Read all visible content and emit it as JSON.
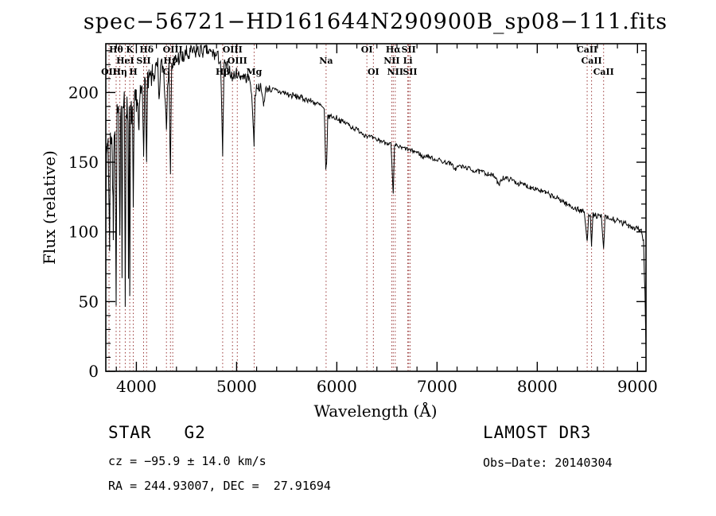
{
  "title": "spec−56721−HD161644N290900B_sp08−111.fits",
  "xlabel": "Wavelength (Å)",
  "ylabel": "Flux (relative)",
  "footer": {
    "class_label": "STAR   G2",
    "survey": "LAMOST DR3",
    "cz": "cz = −95.9 ± 14.0 km/s",
    "obs_date": "Obs−Date: 20140304",
    "radec": "RA = 244.93007, DEC =  27.91694"
  },
  "colors": {
    "spectrum": "#000000",
    "line_marker": "#9b3a3a",
    "axis": "#000000",
    "background": "#ffffff"
  },
  "chart_data": {
    "type": "line",
    "title": "spec−56721−HD161644N290900B_sp08−111.fits",
    "xlabel": "Wavelength (Å)",
    "ylabel": "Flux (relative)",
    "xlim": [
      3695,
      9085
    ],
    "ylim": [
      0,
      235
    ],
    "xticks": [
      4000,
      5000,
      6000,
      7000,
      8000,
      9000
    ],
    "yticks": [
      0,
      50,
      100,
      150,
      200
    ],
    "grid": false,
    "legend": "none",
    "spectral_lines": [
      {
        "label": "OII",
        "wavelength": 3727,
        "row": 3
      },
      {
        "label": "Hθ",
        "wavelength": 3798,
        "row": 1
      },
      {
        "label": "Hη",
        "wavelength": 3835,
        "row": 3
      },
      {
        "label": "HeI",
        "wavelength": 3889,
        "row": 2
      },
      {
        "label": "K",
        "wavelength": 3934,
        "row": 1
      },
      {
        "label": "H",
        "wavelength": 3969,
        "row": 3
      },
      {
        "label": "SII",
        "wavelength": 4072,
        "row": 2
      },
      {
        "label": "Hδ",
        "wavelength": 4102,
        "row": 1
      },
      {
        "label": "G",
        "wavelength": 4300,
        "row": 3
      },
      {
        "label": "Hγ",
        "wavelength": 4340,
        "row": 2
      },
      {
        "label": "OIII",
        "wavelength": 4363,
        "row": 1
      },
      {
        "label": "Hβ",
        "wavelength": 4861,
        "row": 3
      },
      {
        "label": "OIII",
        "wavelength": 4959,
        "row": 1
      },
      {
        "label": "OIII",
        "wavelength": 5007,
        "row": 2
      },
      {
        "label": "Mg",
        "wavelength": 5175,
        "row": 3
      },
      {
        "label": "Na",
        "wavelength": 5893,
        "row": 2
      },
      {
        "label": "OI",
        "wavelength": 6300,
        "row": 1
      },
      {
        "label": "OI",
        "wavelength": 6365,
        "row": 3
      },
      {
        "label": "NII",
        "wavelength": 6548,
        "row": 2
      },
      {
        "label": "Hα",
        "wavelength": 6563,
        "row": 1
      },
      {
        "label": "NII",
        "wavelength": 6583,
        "row": 3
      },
      {
        "label": "Li",
        "wavelength": 6708,
        "row": 2
      },
      {
        "label": "SII",
        "wavelength": 6717,
        "row": 1
      },
      {
        "label": "SII",
        "wavelength": 6731,
        "row": 3
      },
      {
        "label": "CaII",
        "wavelength": 8498,
        "row": 1
      },
      {
        "label": "CaII",
        "wavelength": 8542,
        "row": 2
      },
      {
        "label": "CaII",
        "wavelength": 8662,
        "row": 3
      }
    ],
    "noise_profile": [
      [
        3695,
        12
      ],
      [
        3900,
        11
      ],
      [
        4100,
        9
      ],
      [
        4400,
        6.5
      ],
      [
        4700,
        5.5
      ],
      [
        5000,
        4
      ],
      [
        5300,
        2.8
      ],
      [
        5700,
        2.2
      ],
      [
        6200,
        1.8
      ],
      [
        7000,
        1.6
      ],
      [
        7600,
        1.8
      ],
      [
        8200,
        2
      ],
      [
        8700,
        2.2
      ],
      [
        9085,
        2.5
      ]
    ],
    "series": [
      {
        "name": "spectrum",
        "points": [
          [
            3695,
            110
          ],
          [
            3702,
            150
          ],
          [
            3710,
            163
          ],
          [
            3718,
            168
          ],
          [
            3727,
            118
          ],
          [
            3733,
            92
          ],
          [
            3740,
            165
          ],
          [
            3748,
            170
          ],
          [
            3755,
            172
          ],
          [
            3762,
            138
          ],
          [
            3770,
            100
          ],
          [
            3778,
            176
          ],
          [
            3786,
            180
          ],
          [
            3798,
            46
          ],
          [
            3806,
            182
          ],
          [
            3814,
            184
          ],
          [
            3822,
            186
          ],
          [
            3828,
            148
          ],
          [
            3835,
            90
          ],
          [
            3843,
            190
          ],
          [
            3850,
            192
          ],
          [
            3857,
            76
          ],
          [
            3864,
            193
          ],
          [
            3872,
            190
          ],
          [
            3880,
            191
          ],
          [
            3889,
            50
          ],
          [
            3898,
            192
          ],
          [
            3906,
            188
          ],
          [
            3915,
            186
          ],
          [
            3921,
            70
          ],
          [
            3928,
            186
          ],
          [
            3934,
            45
          ],
          [
            3942,
            184
          ],
          [
            3950,
            185
          ],
          [
            3960,
            187
          ],
          [
            3969,
            108
          ],
          [
            3978,
            190
          ],
          [
            3990,
            193
          ],
          [
            4000,
            196
          ],
          [
            4012,
            194
          ],
          [
            4026,
            168
          ],
          [
            4038,
            199
          ],
          [
            4050,
            201
          ],
          [
            4060,
            200
          ],
          [
            4072,
            163
          ],
          [
            4082,
            203
          ],
          [
            4092,
            205
          ],
          [
            4102,
            148
          ],
          [
            4112,
            206
          ],
          [
            4126,
            208
          ],
          [
            4144,
            210
          ],
          [
            4160,
            212
          ],
          [
            4178,
            214
          ],
          [
            4200,
            216
          ],
          [
            4215,
            217
          ],
          [
            4226,
            188
          ],
          [
            4240,
            218
          ],
          [
            4258,
            219
          ],
          [
            4272,
            217
          ],
          [
            4284,
            200
          ],
          [
            4300,
            178
          ],
          [
            4312,
            212
          ],
          [
            4325,
            216
          ],
          [
            4340,
            146
          ],
          [
            4352,
            218
          ],
          [
            4364,
            220
          ],
          [
            4380,
            222
          ],
          [
            4400,
            224
          ],
          [
            4420,
            225
          ],
          [
            4440,
            226
          ],
          [
            4460,
            224
          ],
          [
            4480,
            226
          ],
          [
            4500,
            228
          ],
          [
            4520,
            226
          ],
          [
            4540,
            228
          ],
          [
            4560,
            229
          ],
          [
            4580,
            228
          ],
          [
            4600,
            230
          ],
          [
            4620,
            229
          ],
          [
            4640,
            231
          ],
          [
            4660,
            230
          ],
          [
            4680,
            229
          ],
          [
            4700,
            231
          ],
          [
            4720,
            229
          ],
          [
            4740,
            228
          ],
          [
            4760,
            228
          ],
          [
            4780,
            227
          ],
          [
            4800,
            226
          ],
          [
            4820,
            225
          ],
          [
            4840,
            222
          ],
          [
            4861,
            154
          ],
          [
            4875,
            220
          ],
          [
            4890,
            219
          ],
          [
            4910,
            218
          ],
          [
            4930,
            217
          ],
          [
            4957,
            210
          ],
          [
            4975,
            213
          ],
          [
            5000,
            214
          ],
          [
            5020,
            213
          ],
          [
            5040,
            212
          ],
          [
            5060,
            212
          ],
          [
            5080,
            211
          ],
          [
            5100,
            210
          ],
          [
            5120,
            210
          ],
          [
            5140,
            208
          ],
          [
            5167,
            176
          ],
          [
            5175,
            164
          ],
          [
            5184,
            196
          ],
          [
            5200,
            205
          ],
          [
            5220,
            204
          ],
          [
            5240,
            204
          ],
          [
            5270,
            192
          ],
          [
            5290,
            202
          ],
          [
            5320,
            203
          ],
          [
            5350,
            202
          ],
          [
            5380,
            201
          ],
          [
            5410,
            201
          ],
          [
            5440,
            200
          ],
          [
            5470,
            200
          ],
          [
            5500,
            199
          ],
          [
            5530,
            198
          ],
          [
            5560,
            198
          ],
          [
            5590,
            197
          ],
          [
            5620,
            197
          ],
          [
            5650,
            196
          ],
          [
            5680,
            195
          ],
          [
            5710,
            195
          ],
          [
            5740,
            194
          ],
          [
            5770,
            193
          ],
          [
            5800,
            192
          ],
          [
            5830,
            191
          ],
          [
            5860,
            189
          ],
          [
            5875,
            187
          ],
          [
            5890,
            144
          ],
          [
            5898,
            150
          ],
          [
            5910,
            182
          ],
          [
            5930,
            183
          ],
          [
            5950,
            183
          ],
          [
            5970,
            182
          ],
          [
            6000,
            182
          ],
          [
            6030,
            180
          ],
          [
            6060,
            179
          ],
          [
            6090,
            178
          ],
          [
            6120,
            177
          ],
          [
            6150,
            175
          ],
          [
            6180,
            174
          ],
          [
            6210,
            173
          ],
          [
            6240,
            172
          ],
          [
            6270,
            170
          ],
          [
            6300,
            169
          ],
          [
            6330,
            168
          ],
          [
            6360,
            167
          ],
          [
            6390,
            166
          ],
          [
            6420,
            166
          ],
          [
            6450,
            165
          ],
          [
            6480,
            164
          ],
          [
            6510,
            164
          ],
          [
            6540,
            163
          ],
          [
            6563,
            126
          ],
          [
            6575,
            160
          ],
          [
            6590,
            162
          ],
          [
            6620,
            161
          ],
          [
            6650,
            160
          ],
          [
            6680,
            160
          ],
          [
            6710,
            159
          ],
          [
            6740,
            158
          ],
          [
            6770,
            158
          ],
          [
            6800,
            157
          ],
          [
            6830,
            156
          ],
          [
            6860,
            153
          ],
          [
            6890,
            155
          ],
          [
            6920,
            154
          ],
          [
            6950,
            153
          ],
          [
            6980,
            152
          ],
          [
            7010,
            152
          ],
          [
            7040,
            151
          ],
          [
            7070,
            150
          ],
          [
            7100,
            150
          ],
          [
            7130,
            149
          ],
          [
            7160,
            147
          ],
          [
            7185,
            145
          ],
          [
            7210,
            147
          ],
          [
            7240,
            147
          ],
          [
            7270,
            146
          ],
          [
            7300,
            146
          ],
          [
            7330,
            145
          ],
          [
            7360,
            144
          ],
          [
            7390,
            144
          ],
          [
            7420,
            143
          ],
          [
            7450,
            143
          ],
          [
            7480,
            142
          ],
          [
            7510,
            142
          ],
          [
            7540,
            141
          ],
          [
            7570,
            140
          ],
          [
            7600,
            136
          ],
          [
            7615,
            133
          ],
          [
            7630,
            137
          ],
          [
            7660,
            139
          ],
          [
            7690,
            138
          ],
          [
            7720,
            138
          ],
          [
            7750,
            137
          ],
          [
            7780,
            136
          ],
          [
            7810,
            135
          ],
          [
            7840,
            134
          ],
          [
            7870,
            134
          ],
          [
            7900,
            133
          ],
          [
            7930,
            132
          ],
          [
            7960,
            132
          ],
          [
            7990,
            131
          ],
          [
            8020,
            130
          ],
          [
            8050,
            129
          ],
          [
            8080,
            128
          ],
          [
            8110,
            127
          ],
          [
            8140,
            126
          ],
          [
            8170,
            125
          ],
          [
            8200,
            124
          ],
          [
            8230,
            123
          ],
          [
            8260,
            122
          ],
          [
            8290,
            120
          ],
          [
            8320,
            119
          ],
          [
            8350,
            118
          ],
          [
            8380,
            117
          ],
          [
            8410,
            116
          ],
          [
            8440,
            115
          ],
          [
            8470,
            114
          ],
          [
            8498,
            92
          ],
          [
            8512,
            113
          ],
          [
            8530,
            113
          ],
          [
            8542,
            89
          ],
          [
            8556,
            112
          ],
          [
            8580,
            112
          ],
          [
            8610,
            111
          ],
          [
            8640,
            111
          ],
          [
            8662,
            87
          ],
          [
            8676,
            110
          ],
          [
            8700,
            110
          ],
          [
            8730,
            109
          ],
          [
            8760,
            109
          ],
          [
            8790,
            108
          ],
          [
            8820,
            107
          ],
          [
            8850,
            106
          ],
          [
            8880,
            106
          ],
          [
            8910,
            105
          ],
          [
            8940,
            104
          ],
          [
            8970,
            103
          ],
          [
            9000,
            103
          ],
          [
            9020,
            102
          ],
          [
            9040,
            100
          ],
          [
            9060,
            94
          ],
          [
            9075,
            55
          ],
          [
            9085,
            18
          ]
        ]
      }
    ]
  }
}
